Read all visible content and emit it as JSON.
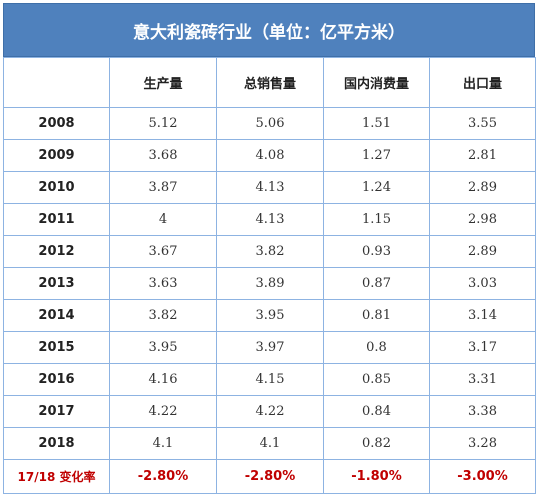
{
  "title": "意大利瓷砖行业（单位：亿平方米）",
  "columns": [
    "",
    "生产量",
    "总销售量",
    "国内消费量",
    "出口量"
  ],
  "rows": [
    {
      "year": "2008",
      "production": "5.12",
      "total_sales": "5.06",
      "domestic": "1.51",
      "export": "3.55"
    },
    {
      "year": "2009",
      "production": "3.68",
      "total_sales": "4.08",
      "domestic": "1.27",
      "export": "2.81"
    },
    {
      "year": "2010",
      "production": "3.87",
      "total_sales": "4.13",
      "domestic": "1.24",
      "export": "2.89"
    },
    {
      "year": "2011",
      "production": "4",
      "total_sales": "4.13",
      "domestic": "1.15",
      "export": "2.98"
    },
    {
      "year": "2012",
      "production": "3.67",
      "total_sales": "3.82",
      "domestic": "0.93",
      "export": "2.89"
    },
    {
      "year": "2013",
      "production": "3.63",
      "total_sales": "3.89",
      "domestic": "0.87",
      "export": "3.03"
    },
    {
      "year": "2014",
      "production": "3.82",
      "total_sales": "3.95",
      "domestic": "0.81",
      "export": "3.14"
    },
    {
      "year": "2015",
      "production": "3.95",
      "total_sales": "3.97",
      "domestic": "0.8",
      "export": "3.17"
    },
    {
      "year": "2016",
      "production": "4.16",
      "total_sales": "4.15",
      "domestic": "0.85",
      "export": "3.31"
    },
    {
      "year": "2017",
      "production": "4.22",
      "total_sales": "4.22",
      "domestic": "0.84",
      "export": "3.38"
    },
    {
      "year": "2018",
      "production": "4.1",
      "total_sales": "4.1",
      "domestic": "0.82",
      "export": "3.28"
    }
  ],
  "change_row": {
    "label": "17/18 变化率",
    "production": "-2.80%",
    "total_sales": "-2.80%",
    "domestic": "-1.80%",
    "export": "-3.00%"
  },
  "colors": {
    "header_bg": "#4f81bd",
    "grid": "#8db3e2",
    "change_text": "#c00000"
  }
}
